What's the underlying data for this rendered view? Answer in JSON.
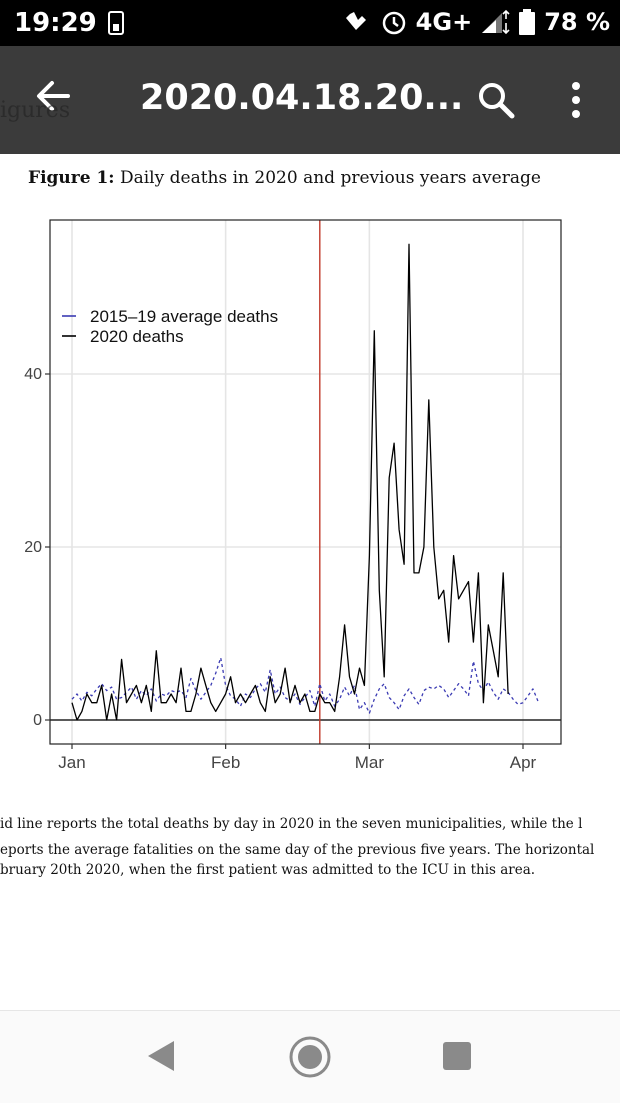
{
  "status_bar": {
    "time": "19:29",
    "network": "4G+",
    "battery": "78 %"
  },
  "app_bar": {
    "title": "2020.04.18.20...",
    "background_text": "igures"
  },
  "figure": {
    "caption_label": "Figure 1:",
    "caption_text": "Daily deaths in 2020 and previous years average"
  },
  "notes": [
    "id line reports the total deaths by day in 2020 in the seven municipalities, while the l",
    "eports the average fatalities on the same day of the previous five years.  The horizontal",
    "bruary 20th 2020, when the first patient was admitted to the ICU in this area."
  ],
  "chart_data": {
    "type": "line",
    "xlabel": "",
    "ylabel": "",
    "x_ticks": [
      "Jan",
      "Feb",
      "Mar",
      "Apr"
    ],
    "y_ticks": [
      0,
      20,
      40
    ],
    "ylim": [
      -2.8,
      58.2
    ],
    "xlim": [
      "2020-01-01",
      "2020-04-05"
    ],
    "vline": {
      "date": "2020-02-20",
      "color": "#c0392b"
    },
    "legend": {
      "placement": "top-left"
    },
    "grid": true,
    "x_dates": [
      "01-01",
      "01-02",
      "01-03",
      "01-04",
      "01-05",
      "01-06",
      "01-07",
      "01-08",
      "01-09",
      "01-10",
      "01-11",
      "01-12",
      "01-13",
      "01-14",
      "01-15",
      "01-16",
      "01-17",
      "01-18",
      "01-19",
      "01-20",
      "01-21",
      "01-22",
      "01-23",
      "01-24",
      "01-25",
      "01-26",
      "01-27",
      "01-28",
      "01-29",
      "01-30",
      "01-31",
      "02-01",
      "02-02",
      "02-03",
      "02-04",
      "02-05",
      "02-06",
      "02-07",
      "02-08",
      "02-09",
      "02-10",
      "02-11",
      "02-12",
      "02-13",
      "02-14",
      "02-15",
      "02-16",
      "02-17",
      "02-18",
      "02-19",
      "02-20",
      "02-21",
      "02-22",
      "02-23",
      "02-24",
      "02-25",
      "02-26",
      "02-27",
      "02-28",
      "02-29",
      "03-01",
      "03-02",
      "03-03",
      "03-04",
      "03-05",
      "03-06",
      "03-07",
      "03-08",
      "03-09",
      "03-10",
      "03-11",
      "03-12",
      "03-13",
      "03-14",
      "03-15",
      "03-16",
      "03-17",
      "03-18",
      "03-19",
      "03-20",
      "03-21",
      "03-22",
      "03-23",
      "03-24",
      "03-25",
      "03-26",
      "03-27",
      "03-28",
      "03-29",
      "03-30",
      "03-31",
      "04-01",
      "04-02",
      "04-03",
      "04-04"
    ],
    "series": [
      {
        "name": "2015–19 average deaths",
        "color": "#3b3bb3",
        "dash": true,
        "values": [
          2.4,
          3.0,
          2.2,
          3.2,
          2.8,
          3.6,
          4.2,
          3.4,
          3.8,
          2.4,
          2.6,
          3.2,
          3.8,
          2.4,
          3.4,
          2.8,
          3.6,
          2.2,
          3.0,
          2.8,
          3.4,
          3.2,
          3.4,
          2.6,
          4.8,
          3.4,
          2.4,
          3.2,
          4.0,
          5.4,
          7.2,
          4.0,
          2.8,
          2.4,
          1.6,
          3.0,
          2.6,
          3.6,
          4.2,
          3.2,
          5.8,
          3.0,
          3.8,
          2.6,
          2.2,
          3.0,
          1.8,
          2.6,
          3.4,
          1.6,
          4.2,
          2.2,
          3.0,
          1.6,
          2.4,
          3.8,
          2.8,
          4.0,
          1.2,
          2.0,
          0.8,
          2.4,
          3.6,
          4.2,
          2.6,
          2.0,
          1.2,
          2.8,
          3.6,
          2.6,
          1.8,
          3.4,
          3.8,
          3.6,
          4.0,
          3.6,
          2.6,
          3.4,
          4.2,
          3.6,
          2.8,
          6.8,
          4.2,
          3.4,
          4.4,
          3.2,
          2.4,
          3.6,
          3.2,
          2.4,
          1.8,
          2.0,
          2.8,
          3.6,
          2.2
        ]
      },
      {
        "name": "2020 deaths",
        "color": "#000000",
        "dash": false,
        "values": [
          2,
          0,
          1,
          3,
          2,
          2,
          4,
          0,
          3,
          0,
          7,
          2,
          3,
          4,
          2,
          4,
          1,
          8,
          2,
          2,
          3,
          2,
          6,
          1,
          1,
          3,
          6,
          4,
          2,
          1,
          2,
          3,
          5,
          2,
          3,
          2,
          3,
          4,
          2,
          1,
          5,
          2,
          3,
          6,
          2,
          4,
          2,
          3,
          1,
          1,
          3,
          2,
          2,
          1,
          5,
          11,
          5,
          3,
          6,
          4,
          19,
          45,
          15,
          5,
          28,
          32,
          22,
          18,
          55,
          17,
          17,
          20,
          37,
          20,
          14,
          15,
          9,
          19,
          14,
          15,
          16,
          9,
          17,
          2,
          11,
          8,
          5,
          17,
          3
        ]
      }
    ]
  }
}
